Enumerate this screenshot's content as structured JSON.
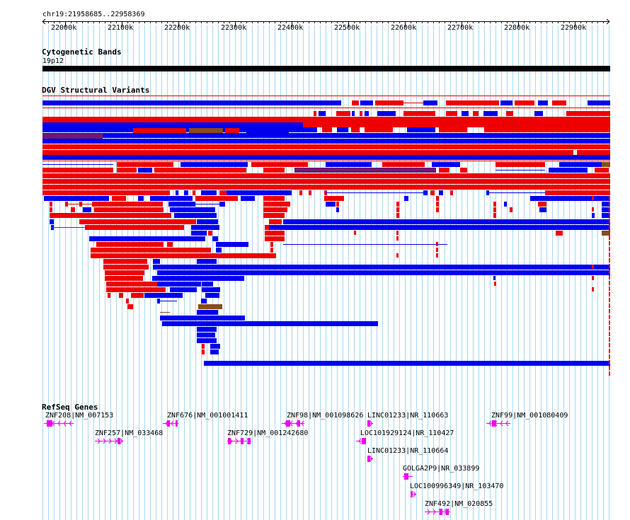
{
  "colors": {
    "gridline": "#a9d6f0",
    "gain": "#0000ee",
    "loss": "#ee0000",
    "inversion": "#8a4b1c",
    "complex": "#701970",
    "gene": "#ee00ee",
    "band": "#000000"
  },
  "ruler": {
    "region": "chr19:21958685..22958369",
    "ticks": [
      "22000k",
      "22100k",
      "22200k",
      "22300k",
      "22400k",
      "22500k",
      "22600k",
      "22700k",
      "22800k",
      "22900k"
    ]
  },
  "tracks": {
    "cytoband": {
      "title": "Cytogenetic Bands",
      "band_label": "19p12"
    },
    "dgv": {
      "title": "DGV Structural Variants"
    },
    "refseq": {
      "title": "RefSeq Genes"
    }
  },
  "genes": [
    {
      "label": "ZNF208|NM_007153",
      "strand": "-"
    },
    {
      "label": "ZNF257|NM_033468",
      "strand": "+"
    },
    {
      "label": "ZNF676|NM_001001411",
      "strand": "-"
    },
    {
      "label": "ZNF729|NM_001242680",
      "strand": "+"
    },
    {
      "label": "ZNF98|NM_001098626",
      "strand": "-"
    },
    {
      "label": "LINC01233|NR_110663",
      "strand": "+"
    },
    {
      "label": "LOC101929124|NR_110427",
      "strand": "-"
    },
    {
      "label": "LINC01233|NR_110664",
      "strand": "+"
    },
    {
      "label": "GOLGA2P9|NR_033899",
      "strand": "+"
    },
    {
      "label": "LOC100996349|NR_103470",
      "strand": "+"
    },
    {
      "label": "ZNF492|NM_020855",
      "strand": "+"
    },
    {
      "label": "ZNF99|NM_001080409",
      "strand": "-"
    }
  ]
}
